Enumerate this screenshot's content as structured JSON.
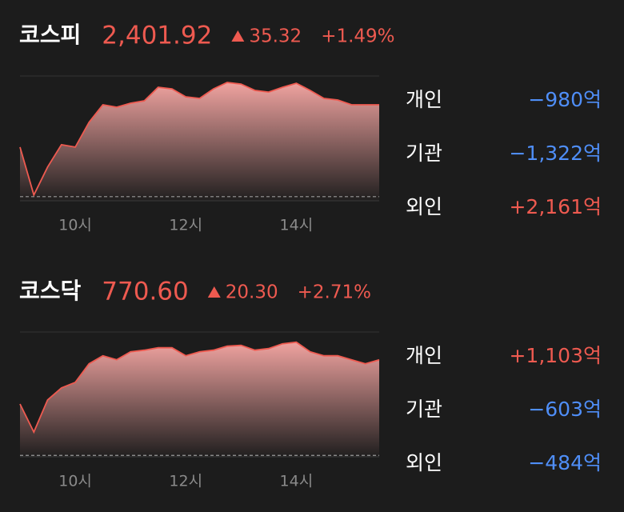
{
  "markets": [
    {
      "name": "코스피",
      "price": "2,401.92",
      "change": "35.32",
      "change_pct": "+1.49%",
      "color": "#ee5a50",
      "investors": [
        {
          "label": "개인",
          "value": "−980억",
          "color": "#4f8ef7"
        },
        {
          "label": "기관",
          "value": "−1,322억",
          "color": "#4f8ef7"
        },
        {
          "label": "외인",
          "value": "+2,161억",
          "color": "#ee5a50"
        }
      ]
    },
    {
      "name": "코스닥",
      "price": "770.60",
      "change": "20.30",
      "change_pct": "+2.71%",
      "color": "#ee5a50",
      "investors": [
        {
          "label": "개인",
          "value": "+1,103억",
          "color": "#ee5a50"
        },
        {
          "label": "기관",
          "value": "−603억",
          "color": "#4f8ef7"
        },
        {
          "label": "외인",
          "value": "−484억",
          "color": "#4f8ef7"
        }
      ]
    }
  ],
  "chart_data": [
    {
      "type": "area",
      "color": "#ee5a50",
      "x": [
        9,
        9.25,
        9.5,
        9.75,
        10,
        10.25,
        10.5,
        10.75,
        11,
        11.25,
        11.5,
        11.75,
        12,
        12.25,
        12.5,
        12.75,
        13,
        13.25,
        13.5,
        13.75,
        14,
        14.25,
        14.5,
        14.75,
        15,
        15.25,
        15.5
      ],
      "values": [
        2385.65,
        2367.23,
        2377.97,
        2386.57,
        2385.65,
        2395.17,
        2401.92,
        2401.0,
        2402.53,
        2403.46,
        2408.67,
        2408.06,
        2404.99,
        2404.38,
        2408.06,
        2410.52,
        2409.9,
        2407.45,
        2406.83,
        2408.67,
        2410.21,
        2407.45,
        2404.38,
        2403.76,
        2401.92,
        2401.92,
        2401.92
      ],
      "xlim": [
        9,
        15.5
      ],
      "xticks": [
        {
          "value": 10,
          "label": "10시"
        },
        {
          "value": 12,
          "label": "12시"
        },
        {
          "value": 14,
          "label": "14시"
        }
      ],
      "ylim": [
        2365,
        2413
      ],
      "reference": 2366.6
    },
    {
      "type": "area",
      "color": "#ee5a50",
      "x": [
        9,
        9.25,
        9.5,
        9.75,
        10,
        10.25,
        10.5,
        10.75,
        11,
        11.25,
        11.5,
        11.75,
        12,
        12.25,
        12.5,
        12.75,
        13,
        13.25,
        13.5,
        13.75,
        14,
        14.25,
        14.5,
        14.75,
        15,
        15.25,
        15.5
      ],
      "values": [
        761.22,
        755.25,
        762.07,
        764.63,
        765.82,
        769.75,
        771.45,
        770.6,
        772.31,
        772.65,
        773.16,
        773.16,
        771.45,
        772.31,
        772.65,
        773.5,
        773.67,
        772.65,
        772.99,
        774.01,
        774.35,
        772.31,
        771.45,
        771.45,
        770.6,
        769.75,
        770.6
      ],
      "xlim": [
        9,
        15.5
      ],
      "xticks": [
        {
          "value": 10,
          "label": "10시"
        },
        {
          "value": 12,
          "label": "12시"
        },
        {
          "value": 14,
          "label": "14시"
        }
      ],
      "ylim": [
        750,
        776.5
      ],
      "reference": 750.3
    }
  ]
}
